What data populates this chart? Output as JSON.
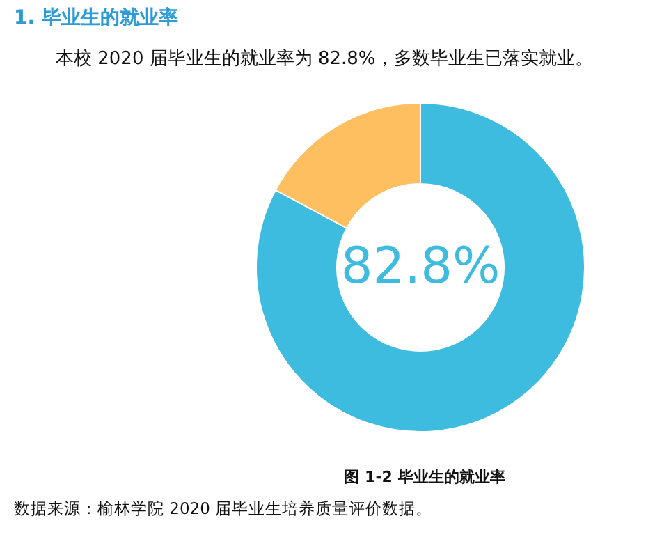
{
  "chart_data": {
    "type": "donut",
    "title": "1. 毕业生的就业率",
    "subtitle": "本校 2020 届毕业生的就业率为 82.8%，多数毕业生已落实就业。",
    "categories": [
      null,
      null
    ],
    "values": [
      82.8,
      17.2
    ],
    "colors": [
      "#3dbcdf",
      "#fdbf60"
    ],
    "annotations": [
      "82.8%",
      "图 1-2 毕业生的就业率",
      "数据来源：榆林学院 2020 届毕业生培养质量评价数据。"
    ]
  }
}
